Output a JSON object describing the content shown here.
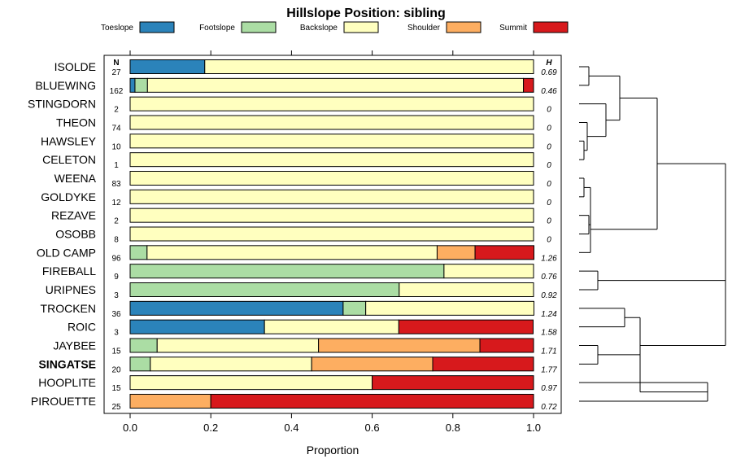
{
  "chart_data": {
    "type": "bar",
    "orientation": "horizontal-stacked",
    "title": "Hillslope Position: sibling",
    "xlabel": "Proportion",
    "xlim": [
      0,
      1
    ],
    "xticks": [
      "0.0",
      "0.2",
      "0.4",
      "0.6",
      "0.8",
      "1.0"
    ],
    "n_header": "N",
    "h_header": "H",
    "highlight": "SINGATSE",
    "legend": [
      {
        "name": "Toeslope",
        "color": "#2b83ba"
      },
      {
        "name": "Footslope",
        "color": "#abdda4"
      },
      {
        "name": "Backslope",
        "color": "#ffffbf"
      },
      {
        "name": "Shoulder",
        "color": "#fdae61"
      },
      {
        "name": "Summit",
        "color": "#d7191c"
      }
    ],
    "rows": [
      {
        "name": "ISOLDE",
        "n": "27",
        "h": "0.69",
        "values": [
          0.185,
          0,
          0.815,
          0,
          0
        ]
      },
      {
        "name": "BLUEWING",
        "n": "162",
        "h": "0.46",
        "values": [
          0.012,
          0.031,
          0.932,
          0,
          0.025
        ]
      },
      {
        "name": "STINGDORN",
        "n": "2",
        "h": "0",
        "values": [
          0,
          0,
          1,
          0,
          0
        ]
      },
      {
        "name": "THEON",
        "n": "74",
        "h": "0",
        "values": [
          0,
          0,
          1,
          0,
          0
        ]
      },
      {
        "name": "HAWSLEY",
        "n": "10",
        "h": "0",
        "values": [
          0,
          0,
          1,
          0,
          0
        ]
      },
      {
        "name": "CELETON",
        "n": "1",
        "h": "0",
        "values": [
          0,
          0,
          1,
          0,
          0
        ]
      },
      {
        "name": "WEENA",
        "n": "83",
        "h": "0",
        "values": [
          0,
          0,
          1,
          0,
          0
        ]
      },
      {
        "name": "GOLDYKE",
        "n": "12",
        "h": "0",
        "values": [
          0,
          0,
          1,
          0,
          0
        ]
      },
      {
        "name": "REZAVE",
        "n": "2",
        "h": "0",
        "values": [
          0,
          0,
          1,
          0,
          0
        ]
      },
      {
        "name": "OSOBB",
        "n": "8",
        "h": "0",
        "values": [
          0,
          0,
          1,
          0,
          0
        ]
      },
      {
        "name": "OLD CAMP",
        "n": "96",
        "h": "1.26",
        "values": [
          0,
          0.042,
          0.719,
          0.094,
          0.146
        ]
      },
      {
        "name": "FIREBALL",
        "n": "9",
        "h": "0.76",
        "values": [
          0,
          0.778,
          0.222,
          0,
          0
        ]
      },
      {
        "name": "URIPNES",
        "n": "3",
        "h": "0.92",
        "values": [
          0,
          0.667,
          0.333,
          0,
          0
        ]
      },
      {
        "name": "TROCKEN",
        "n": "36",
        "h": "1.24",
        "values": [
          0.528,
          0.056,
          0.417,
          0,
          0
        ]
      },
      {
        "name": "ROIC",
        "n": "3",
        "h": "1.58",
        "values": [
          0.333,
          0,
          0.333,
          0,
          0.333
        ]
      },
      {
        "name": "JAYBEE",
        "n": "15",
        "h": "1.71",
        "values": [
          0,
          0.067,
          0.4,
          0.4,
          0.133
        ]
      },
      {
        "name": "SINGATSE",
        "n": "20",
        "h": "1.77",
        "values": [
          0,
          0.05,
          0.4,
          0.3,
          0.25
        ]
      },
      {
        "name": "HOOPLITE",
        "n": "15",
        "h": "0.97",
        "values": [
          0,
          0,
          0.6,
          0,
          0.4
        ]
      },
      {
        "name": "PIROUETTE",
        "n": "25",
        "h": "0.72",
        "values": [
          0,
          0,
          0,
          0.2,
          0.8
        ]
      }
    ]
  }
}
